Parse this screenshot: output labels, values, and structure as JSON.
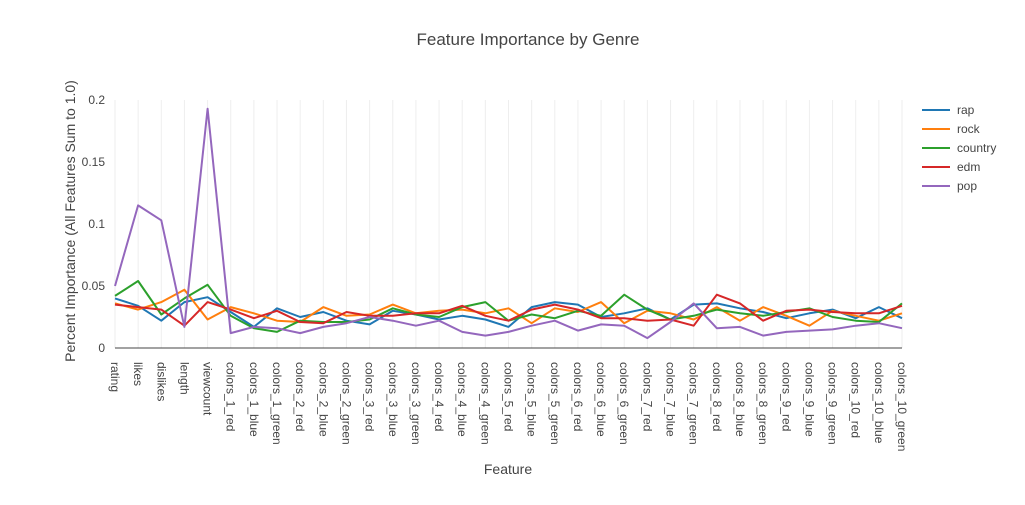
{
  "chart_data": {
    "type": "line",
    "title": "Feature Importance by Genre",
    "xlabel": "Feature",
    "ylabel": "Percent Importance (All Features Sum to 1.0)",
    "ylim": [
      0,
      0.2
    ],
    "yticks": [
      0,
      0.05,
      0.1,
      0.15,
      0.2
    ],
    "ytick_labels": [
      "0",
      "0.05",
      "0.1",
      "0.15",
      "0.2"
    ],
    "grid": "vertical",
    "legend_position": "top-right",
    "categories": [
      "rating",
      "likes",
      "dislikes",
      "length",
      "viewcount",
      "colors_1_red",
      "colors_1_blue",
      "colors_1_green",
      "colors_2_red",
      "colors_2_blue",
      "colors_2_green",
      "colors_3_red",
      "colors_3_blue",
      "colors_3_green",
      "colors_4_red",
      "colors_4_blue",
      "colors_4_green",
      "colors_5_red",
      "colors_5_blue",
      "colors_5_green",
      "colors_6_red",
      "colors_6_blue",
      "colors_6_green",
      "colors_7_red",
      "colors_7_blue",
      "colors_7_green",
      "colors_8_red",
      "colors_8_blue",
      "colors_8_green",
      "colors_9_red",
      "colors_9_blue",
      "colors_9_green",
      "colors_10_red",
      "colors_10_blue",
      "colors_10_green"
    ],
    "series": [
      {
        "name": "rap",
        "color": "#1f77b4",
        "values": [
          0.04,
          0.034,
          0.022,
          0.037,
          0.041,
          0.029,
          0.017,
          0.032,
          0.025,
          0.029,
          0.022,
          0.019,
          0.03,
          0.027,
          0.023,
          0.026,
          0.023,
          0.017,
          0.033,
          0.037,
          0.035,
          0.025,
          0.028,
          0.032,
          0.023,
          0.035,
          0.036,
          0.032,
          0.029,
          0.024,
          0.028,
          0.031,
          0.024,
          0.033,
          0.024
        ]
      },
      {
        "name": "rock",
        "color": "#ff7f0e",
        "values": [
          0.036,
          0.031,
          0.037,
          0.047,
          0.023,
          0.033,
          0.028,
          0.022,
          0.021,
          0.033,
          0.026,
          0.027,
          0.035,
          0.028,
          0.03,
          0.031,
          0.028,
          0.032,
          0.02,
          0.032,
          0.029,
          0.037,
          0.02,
          0.03,
          0.028,
          0.023,
          0.033,
          0.022,
          0.033,
          0.026,
          0.018,
          0.03,
          0.026,
          0.022,
          0.028
        ]
      },
      {
        "name": "country",
        "color": "#2ca02c",
        "values": [
          0.042,
          0.054,
          0.027,
          0.04,
          0.051,
          0.026,
          0.016,
          0.013,
          0.022,
          0.021,
          0.021,
          0.023,
          0.032,
          0.027,
          0.025,
          0.033,
          0.037,
          0.022,
          0.027,
          0.024,
          0.03,
          0.026,
          0.043,
          0.031,
          0.023,
          0.026,
          0.031,
          0.028,
          0.026,
          0.029,
          0.032,
          0.025,
          0.022,
          0.021,
          0.036
        ]
      },
      {
        "name": "edm",
        "color": "#d62728",
        "values": [
          0.035,
          0.033,
          0.031,
          0.018,
          0.037,
          0.031,
          0.024,
          0.03,
          0.021,
          0.02,
          0.029,
          0.026,
          0.026,
          0.028,
          0.028,
          0.034,
          0.026,
          0.022,
          0.031,
          0.035,
          0.031,
          0.024,
          0.024,
          0.022,
          0.023,
          0.018,
          0.043,
          0.036,
          0.022,
          0.03,
          0.031,
          0.029,
          0.028,
          0.028,
          0.034
        ]
      },
      {
        "name": "pop",
        "color": "#9467bd",
        "values": [
          0.05,
          0.115,
          0.103,
          0.017,
          0.193,
          0.012,
          0.017,
          0.016,
          0.012,
          0.017,
          0.02,
          0.025,
          0.022,
          0.018,
          0.022,
          0.013,
          0.01,
          0.013,
          0.018,
          0.022,
          0.014,
          0.019,
          0.018,
          0.008,
          0.021,
          0.036,
          0.016,
          0.017,
          0.01,
          0.013,
          0.014,
          0.015,
          0.018,
          0.02,
          0.016
        ]
      }
    ]
  }
}
